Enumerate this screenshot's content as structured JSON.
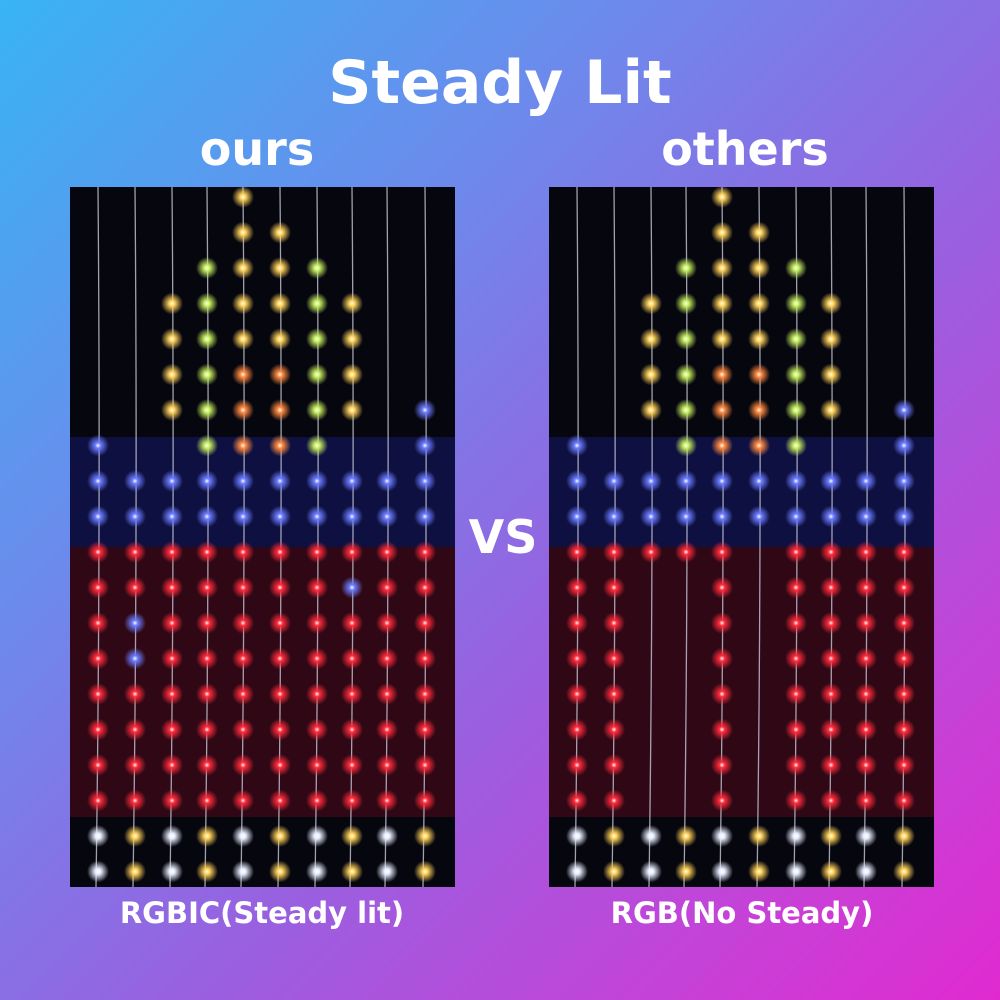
{
  "title": "Steady Lit",
  "left": {
    "label": "ours",
    "caption": "RGBIC(Steady lit)"
  },
  "right": {
    "label": "others",
    "caption": "RGB(No Steady)"
  },
  "vs": "VS",
  "colors": {
    "yellow": "#ffd25a",
    "green": "#c8f060",
    "orange": "#ff8a40",
    "blue": "#6c7cff",
    "red": "#ff2a3a",
    "white": "#e8eeff"
  }
}
